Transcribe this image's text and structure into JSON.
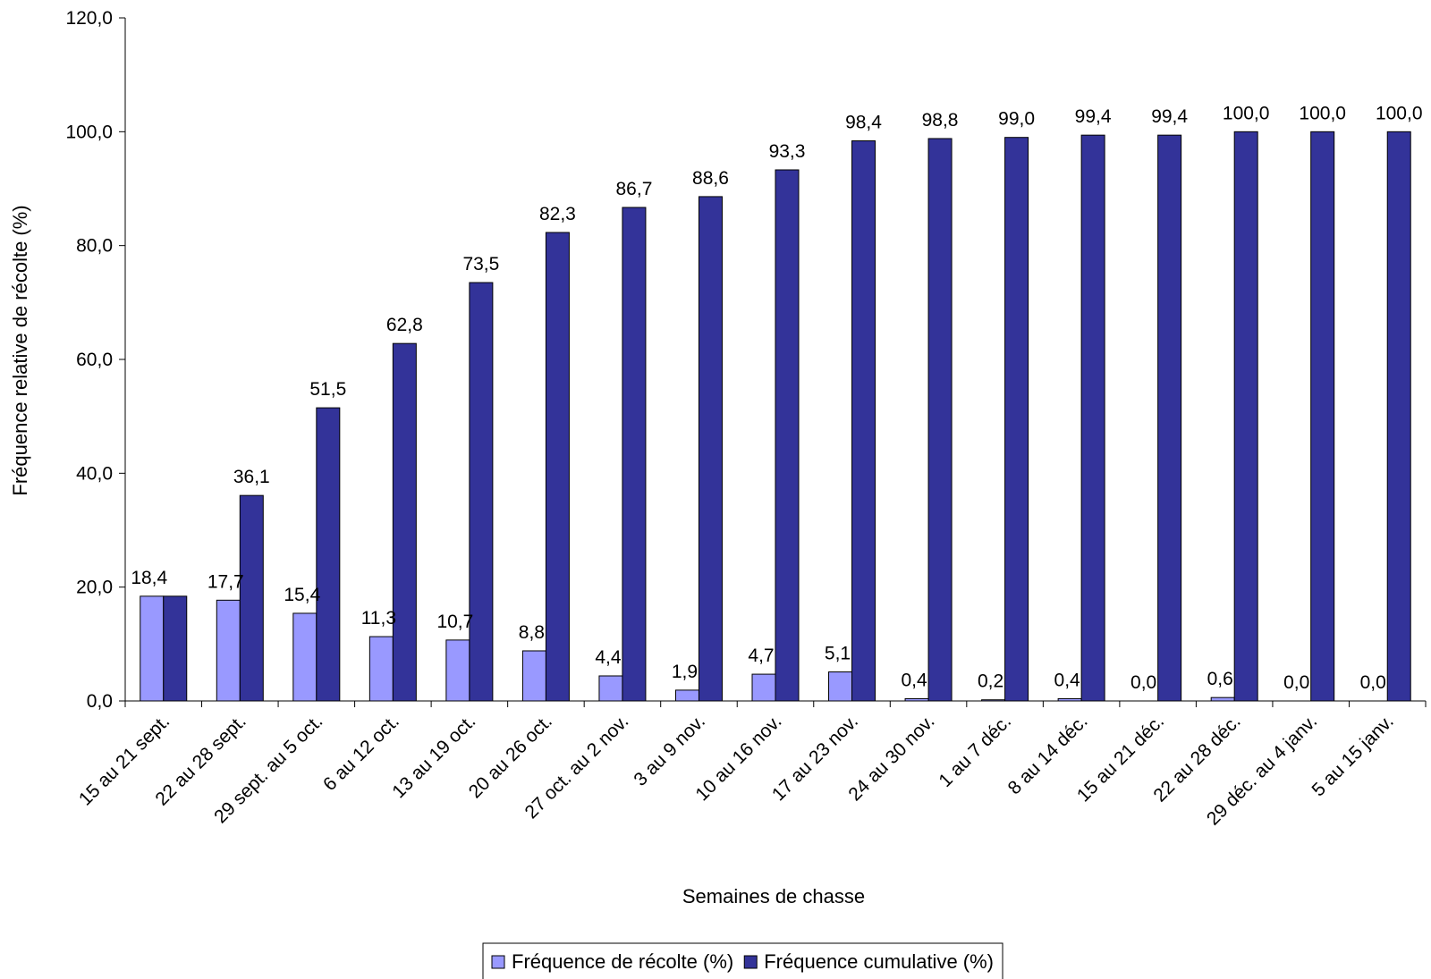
{
  "chart_data": {
    "type": "bar",
    "title": "",
    "xlabel": "Semaines de chasse",
    "ylabel": "Fréquence relative de récolte (%)",
    "ylim": [
      0,
      120
    ],
    "yticks": [
      "0,0",
      "20,0",
      "40,0",
      "60,0",
      "80,0",
      "100,0",
      "120,0"
    ],
    "grid": false,
    "legend_position": "bottom",
    "categories": [
      "15 au 21 sept.",
      "22 au 28 sept.",
      "29 sept. au 5 oct.",
      "6 au 12 oct.",
      "13 au 19 oct.",
      "20 au 26 oct.",
      "27 oct. au 2 nov.",
      "3 au 9 nov.",
      "10 au 16 nov.",
      "17 au 23 nov.",
      "24 au 30 nov.",
      "1 au 7 déc.",
      "8 au 14 déc.",
      "15 au 21 déc.",
      "22 au 28 déc.",
      "29 déc. au 4 janv.",
      "5 au 15 janv."
    ],
    "series": [
      {
        "name": "Fréquence de récolte (%)",
        "color": "#9999ff",
        "values": [
          18.4,
          17.7,
          15.4,
          11.3,
          10.7,
          8.8,
          4.4,
          1.9,
          4.7,
          5.1,
          0.4,
          0.2,
          0.4,
          0.0,
          0.6,
          0.0,
          0.0
        ],
        "labels": [
          "18,4",
          "17,7",
          "15,4",
          "11,3",
          "10,7",
          "8,8",
          "4,4",
          "1,9",
          "4,7",
          "5,1",
          "0,4",
          "0,2",
          "0,4",
          "0,0",
          "0,6",
          "0,0",
          "0,0"
        ]
      },
      {
        "name": "Fréquence cumulative (%)",
        "color": "#333399",
        "values": [
          18.4,
          36.1,
          51.5,
          62.8,
          73.5,
          82.3,
          86.7,
          88.6,
          93.3,
          98.4,
          98.8,
          99.0,
          99.4,
          99.4,
          100.0,
          100.0,
          100.0
        ],
        "labels": [
          "",
          "36,1",
          "51,5",
          "62,8",
          "73,5",
          "82,3",
          "86,7",
          "88,6",
          "93,3",
          "98,4",
          "98,8",
          "99,0",
          "99,4",
          "99,4",
          "100,0",
          "100,0",
          "100,0"
        ]
      }
    ]
  }
}
